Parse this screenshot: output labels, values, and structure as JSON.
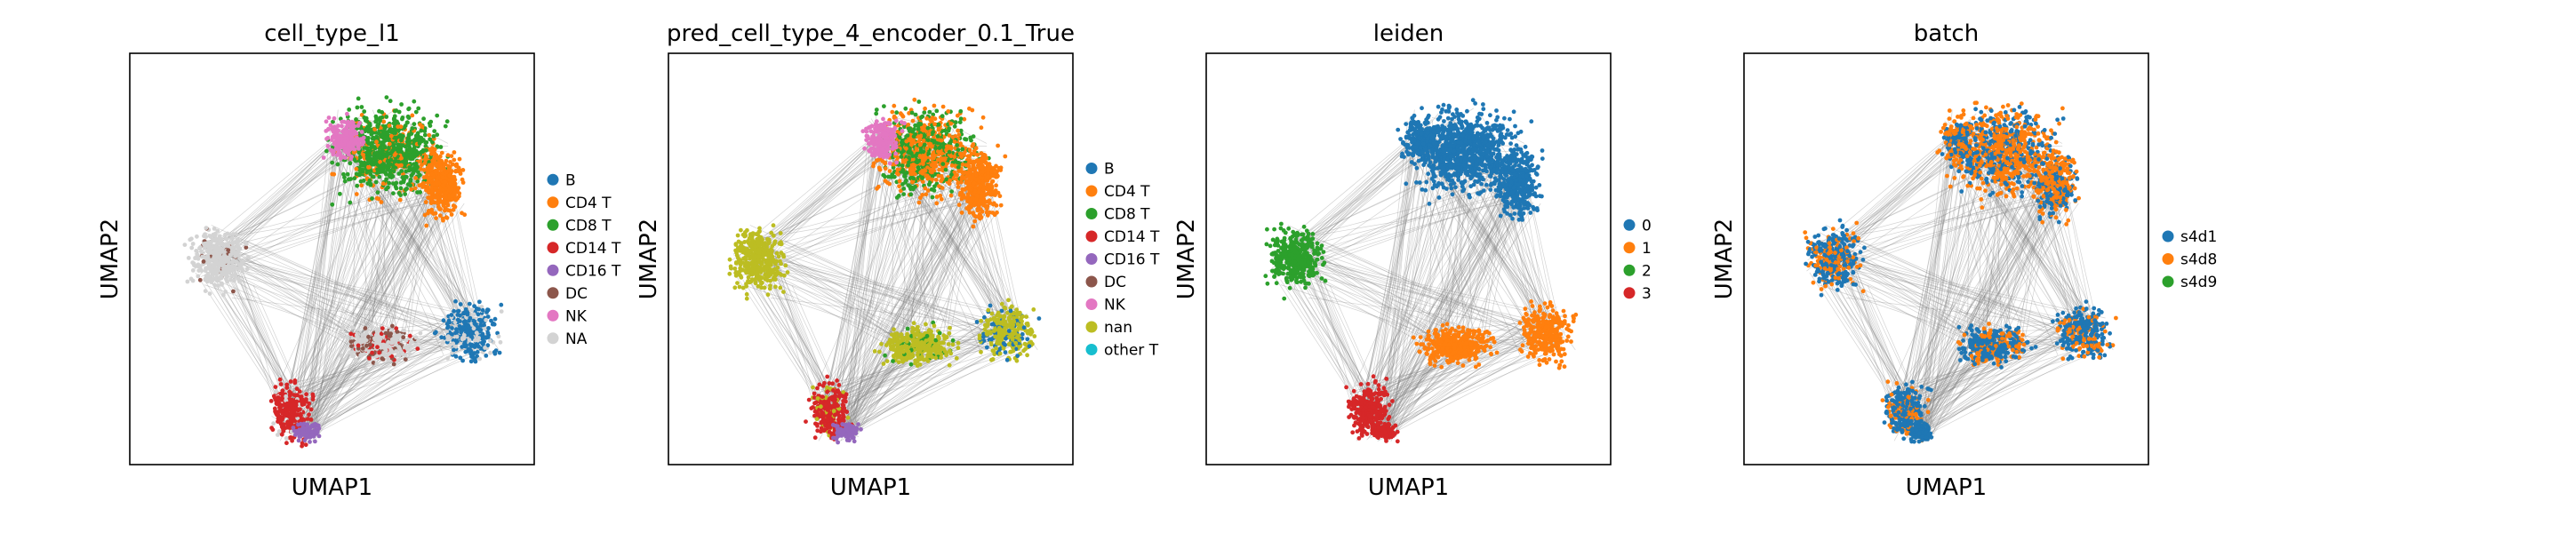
{
  "chart_data": [
    {
      "type": "scatter",
      "title": "cell_type_l1",
      "xlabel": "UMAP1",
      "ylabel": "UMAP2",
      "ticks": false,
      "grid": false,
      "legend_position": "right",
      "legend": [
        {
          "label": "B",
          "color": "#1f77b4"
        },
        {
          "label": "CD4 T",
          "color": "#ff7f0e"
        },
        {
          "label": "CD8 T",
          "color": "#2ca02c"
        },
        {
          "label": "CD14 T",
          "color": "#d62728"
        },
        {
          "label": "CD16 T",
          "color": "#9467bd"
        },
        {
          "label": "DC",
          "color": "#8c564b"
        },
        {
          "label": "NK",
          "color": "#e377c2"
        },
        {
          "label": "NA",
          "color": "#d3d3d3"
        }
      ]
    },
    {
      "type": "scatter",
      "title": "pred_cell_type_4_encoder_0.1_True",
      "xlabel": "UMAP1",
      "ylabel": "UMAP2",
      "ticks": false,
      "grid": false,
      "legend_position": "right",
      "legend": [
        {
          "label": "B",
          "color": "#1f77b4"
        },
        {
          "label": "CD4 T",
          "color": "#ff7f0e"
        },
        {
          "label": "CD8 T",
          "color": "#2ca02c"
        },
        {
          "label": "CD14 T",
          "color": "#d62728"
        },
        {
          "label": "CD16 T",
          "color": "#9467bd"
        },
        {
          "label": "DC",
          "color": "#8c564b"
        },
        {
          "label": "NK",
          "color": "#e377c2"
        },
        {
          "label": "nan",
          "color": "#bcbd22"
        },
        {
          "label": "other T",
          "color": "#17becf"
        }
      ]
    },
    {
      "type": "scatter",
      "title": "leiden",
      "xlabel": "UMAP1",
      "ylabel": "UMAP2",
      "ticks": false,
      "grid": false,
      "legend_position": "right",
      "legend": [
        {
          "label": "0",
          "color": "#1f77b4"
        },
        {
          "label": "1",
          "color": "#ff7f0e"
        },
        {
          "label": "2",
          "color": "#2ca02c"
        },
        {
          "label": "3",
          "color": "#d62728"
        }
      ]
    },
    {
      "type": "scatter",
      "title": "batch",
      "xlabel": "UMAP1",
      "ylabel": "UMAP2",
      "ticks": false,
      "grid": false,
      "legend_position": "right",
      "legend": [
        {
          "label": "s4d1",
          "color": "#1f77b4"
        },
        {
          "label": "s4d8",
          "color": "#ff7f0e"
        },
        {
          "label": "s4d9",
          "color": "#2ca02c"
        }
      ]
    }
  ]
}
